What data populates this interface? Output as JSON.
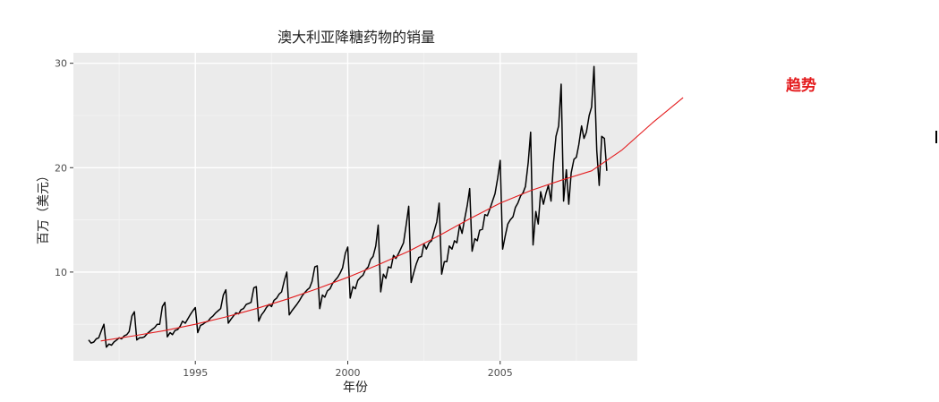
{
  "chart_data": {
    "type": "line",
    "title": "澳大利亚降糖药物的销量",
    "xlabel": "年份",
    "ylabel": "百万（美元）",
    "xlim": [
      1991.0,
      2009.5
    ],
    "ylim": [
      1.5,
      31.0
    ],
    "x_ticks": [
      1995,
      2000,
      2005
    ],
    "y_ticks": [
      10,
      20,
      30
    ],
    "grid": true,
    "panel_background": "#ebebeb",
    "series": [
      {
        "color": "#000000",
        "points": [
          [
            1991.5,
            3.5
          ],
          [
            1991.58,
            3.2
          ],
          [
            1991.67,
            3.3
          ],
          [
            1991.75,
            3.6
          ],
          [
            1991.83,
            3.7
          ],
          [
            1991.92,
            4.4
          ],
          [
            1992.0,
            5.0
          ],
          [
            1992.08,
            2.8
          ],
          [
            1992.17,
            3.1
          ],
          [
            1992.25,
            3.0
          ],
          [
            1992.33,
            3.3
          ],
          [
            1992.42,
            3.5
          ],
          [
            1992.5,
            3.7
          ],
          [
            1992.58,
            3.6
          ],
          [
            1992.67,
            3.9
          ],
          [
            1992.75,
            4.0
          ],
          [
            1992.83,
            4.3
          ],
          [
            1992.92,
            5.8
          ],
          [
            1993.0,
            6.2
          ],
          [
            1993.08,
            3.5
          ],
          [
            1993.17,
            3.7
          ],
          [
            1993.25,
            3.7
          ],
          [
            1993.33,
            3.8
          ],
          [
            1993.42,
            4.1
          ],
          [
            1993.5,
            4.3
          ],
          [
            1993.58,
            4.5
          ],
          [
            1993.67,
            4.7
          ],
          [
            1993.75,
            5.0
          ],
          [
            1993.83,
            5.0
          ],
          [
            1993.92,
            6.7
          ],
          [
            1994.0,
            7.1
          ],
          [
            1994.08,
            3.8
          ],
          [
            1994.17,
            4.2
          ],
          [
            1994.25,
            4.0
          ],
          [
            1994.33,
            4.4
          ],
          [
            1994.42,
            4.5
          ],
          [
            1994.5,
            4.8
          ],
          [
            1994.58,
            5.3
          ],
          [
            1994.67,
            5.1
          ],
          [
            1994.75,
            5.5
          ],
          [
            1994.83,
            5.9
          ],
          [
            1994.92,
            6.3
          ],
          [
            1995.0,
            6.6
          ],
          [
            1995.08,
            4.2
          ],
          [
            1995.17,
            4.9
          ],
          [
            1995.25,
            5.0
          ],
          [
            1995.33,
            5.2
          ],
          [
            1995.42,
            5.3
          ],
          [
            1995.5,
            5.6
          ],
          [
            1995.58,
            5.8
          ],
          [
            1995.67,
            6.1
          ],
          [
            1995.75,
            6.3
          ],
          [
            1995.83,
            6.5
          ],
          [
            1995.92,
            7.8
          ],
          [
            1996.0,
            8.3
          ],
          [
            1996.08,
            5.1
          ],
          [
            1996.17,
            5.5
          ],
          [
            1996.25,
            5.8
          ],
          [
            1996.33,
            6.1
          ],
          [
            1996.42,
            6.0
          ],
          [
            1996.5,
            6.4
          ],
          [
            1996.58,
            6.5
          ],
          [
            1996.67,
            6.9
          ],
          [
            1996.75,
            7.0
          ],
          [
            1996.83,
            7.1
          ],
          [
            1996.92,
            8.5
          ],
          [
            1997.0,
            8.6
          ],
          [
            1997.08,
            5.3
          ],
          [
            1997.17,
            5.9
          ],
          [
            1997.25,
            6.2
          ],
          [
            1997.33,
            6.6
          ],
          [
            1997.42,
            6.9
          ],
          [
            1997.5,
            6.7
          ],
          [
            1997.58,
            7.3
          ],
          [
            1997.67,
            7.5
          ],
          [
            1997.75,
            7.9
          ],
          [
            1997.83,
            8.1
          ],
          [
            1997.92,
            9.2
          ],
          [
            1998.0,
            10.0
          ],
          [
            1998.08,
            5.9
          ],
          [
            1998.17,
            6.3
          ],
          [
            1998.25,
            6.6
          ],
          [
            1998.33,
            6.9
          ],
          [
            1998.42,
            7.3
          ],
          [
            1998.5,
            7.7
          ],
          [
            1998.58,
            8.0
          ],
          [
            1998.67,
            8.3
          ],
          [
            1998.75,
            8.5
          ],
          [
            1998.83,
            9.1
          ],
          [
            1998.92,
            10.5
          ],
          [
            1999.0,
            10.6
          ],
          [
            1999.08,
            6.5
          ],
          [
            1999.17,
            7.8
          ],
          [
            1999.25,
            7.6
          ],
          [
            1999.33,
            8.2
          ],
          [
            1999.42,
            8.4
          ],
          [
            1999.5,
            8.9
          ],
          [
            1999.58,
            9.2
          ],
          [
            1999.67,
            9.5
          ],
          [
            1999.75,
            9.9
          ],
          [
            1999.83,
            10.4
          ],
          [
            1999.92,
            11.8
          ],
          [
            2000.0,
            12.4
          ],
          [
            2000.08,
            7.5
          ],
          [
            2000.17,
            8.6
          ],
          [
            2000.25,
            8.4
          ],
          [
            2000.33,
            9.2
          ],
          [
            2000.42,
            9.5
          ],
          [
            2000.5,
            9.7
          ],
          [
            2000.58,
            10.2
          ],
          [
            2000.67,
            10.5
          ],
          [
            2000.75,
            11.2
          ],
          [
            2000.83,
            11.5
          ],
          [
            2000.92,
            12.5
          ],
          [
            2001.0,
            14.5
          ],
          [
            2001.08,
            8.1
          ],
          [
            2001.17,
            9.8
          ],
          [
            2001.25,
            9.4
          ],
          [
            2001.33,
            10.5
          ],
          [
            2001.42,
            10.4
          ],
          [
            2001.5,
            11.6
          ],
          [
            2001.58,
            11.3
          ],
          [
            2001.67,
            11.8
          ],
          [
            2001.75,
            12.3
          ],
          [
            2001.83,
            12.8
          ],
          [
            2001.92,
            14.6
          ],
          [
            2002.0,
            16.3
          ],
          [
            2002.08,
            9.0
          ],
          [
            2002.17,
            10.0
          ],
          [
            2002.25,
            10.8
          ],
          [
            2002.33,
            11.4
          ],
          [
            2002.42,
            11.5
          ],
          [
            2002.5,
            12.7
          ],
          [
            2002.58,
            12.2
          ],
          [
            2002.67,
            12.8
          ],
          [
            2002.75,
            13.0
          ],
          [
            2002.83,
            13.9
          ],
          [
            2002.92,
            14.8
          ],
          [
            2003.0,
            16.6
          ],
          [
            2003.08,
            9.8
          ],
          [
            2003.17,
            11.0
          ],
          [
            2003.25,
            11.0
          ],
          [
            2003.33,
            12.5
          ],
          [
            2003.42,
            12.2
          ],
          [
            2003.5,
            13.0
          ],
          [
            2003.58,
            12.8
          ],
          [
            2003.67,
            14.5
          ],
          [
            2003.75,
            13.7
          ],
          [
            2003.83,
            15.0
          ],
          [
            2003.92,
            16.4
          ],
          [
            2004.0,
            18.0
          ],
          [
            2004.08,
            12.0
          ],
          [
            2004.17,
            13.2
          ],
          [
            2004.25,
            13.0
          ],
          [
            2004.33,
            14.0
          ],
          [
            2004.42,
            14.1
          ],
          [
            2004.5,
            15.5
          ],
          [
            2004.58,
            15.4
          ],
          [
            2004.67,
            16.1
          ],
          [
            2004.75,
            16.8
          ],
          [
            2004.83,
            17.5
          ],
          [
            2004.92,
            19.0
          ],
          [
            2005.0,
            20.7
          ],
          [
            2005.08,
            12.2
          ],
          [
            2005.17,
            13.5
          ],
          [
            2005.25,
            14.6
          ],
          [
            2005.33,
            15.0
          ],
          [
            2005.42,
            15.3
          ],
          [
            2005.5,
            16.2
          ],
          [
            2005.58,
            16.6
          ],
          [
            2005.67,
            17.3
          ],
          [
            2005.75,
            17.6
          ],
          [
            2005.83,
            18.2
          ],
          [
            2005.92,
            20.5
          ],
          [
            2006.0,
            23.4
          ],
          [
            2006.08,
            12.6
          ],
          [
            2006.17,
            15.8
          ],
          [
            2006.25,
            14.6
          ],
          [
            2006.33,
            17.7
          ],
          [
            2006.42,
            16.5
          ],
          [
            2006.5,
            17.5
          ],
          [
            2006.58,
            18.3
          ],
          [
            2006.67,
            16.8
          ],
          [
            2006.75,
            20.5
          ],
          [
            2006.83,
            23.0
          ],
          [
            2006.92,
            24.0
          ],
          [
            2007.0,
            28.0
          ],
          [
            2007.08,
            16.8
          ],
          [
            2007.17,
            19.8
          ],
          [
            2007.25,
            16.5
          ],
          [
            2007.33,
            19.5
          ],
          [
            2007.42,
            20.8
          ],
          [
            2007.5,
            21.0
          ],
          [
            2007.58,
            22.2
          ],
          [
            2007.67,
            24.0
          ],
          [
            2007.75,
            22.8
          ],
          [
            2007.83,
            23.4
          ],
          [
            2007.92,
            25.0
          ],
          [
            2008.0,
            25.8
          ],
          [
            2008.08,
            29.7
          ],
          [
            2008.17,
            21.6
          ],
          [
            2008.25,
            18.3
          ],
          [
            2008.33,
            23.0
          ],
          [
            2008.42,
            22.8
          ],
          [
            2008.5,
            19.7
          ]
        ]
      },
      {
        "name": "趋势",
        "color": "#e41a1c",
        "points": [
          [
            1991.9,
            3.4
          ],
          [
            1993.0,
            3.9
          ],
          [
            1994.0,
            4.4
          ],
          [
            1995.0,
            5.0
          ],
          [
            1996.0,
            5.7
          ],
          [
            1997.0,
            6.5
          ],
          [
            1998.0,
            7.4
          ],
          [
            1999.0,
            8.4
          ],
          [
            2000.0,
            9.5
          ],
          [
            2001.0,
            10.7
          ],
          [
            2002.0,
            12.0
          ],
          [
            2003.0,
            13.5
          ],
          [
            2004.0,
            15.1
          ],
          [
            2005.0,
            16.6
          ],
          [
            2006.0,
            17.8
          ],
          [
            2007.0,
            18.8
          ],
          [
            2008.0,
            19.7
          ],
          [
            2009.0,
            21.7
          ],
          [
            2010.0,
            24.3
          ],
          [
            2011.0,
            26.7
          ]
        ]
      }
    ],
    "annotation": {
      "text": "趋势",
      "color": "#e41a1c"
    }
  }
}
